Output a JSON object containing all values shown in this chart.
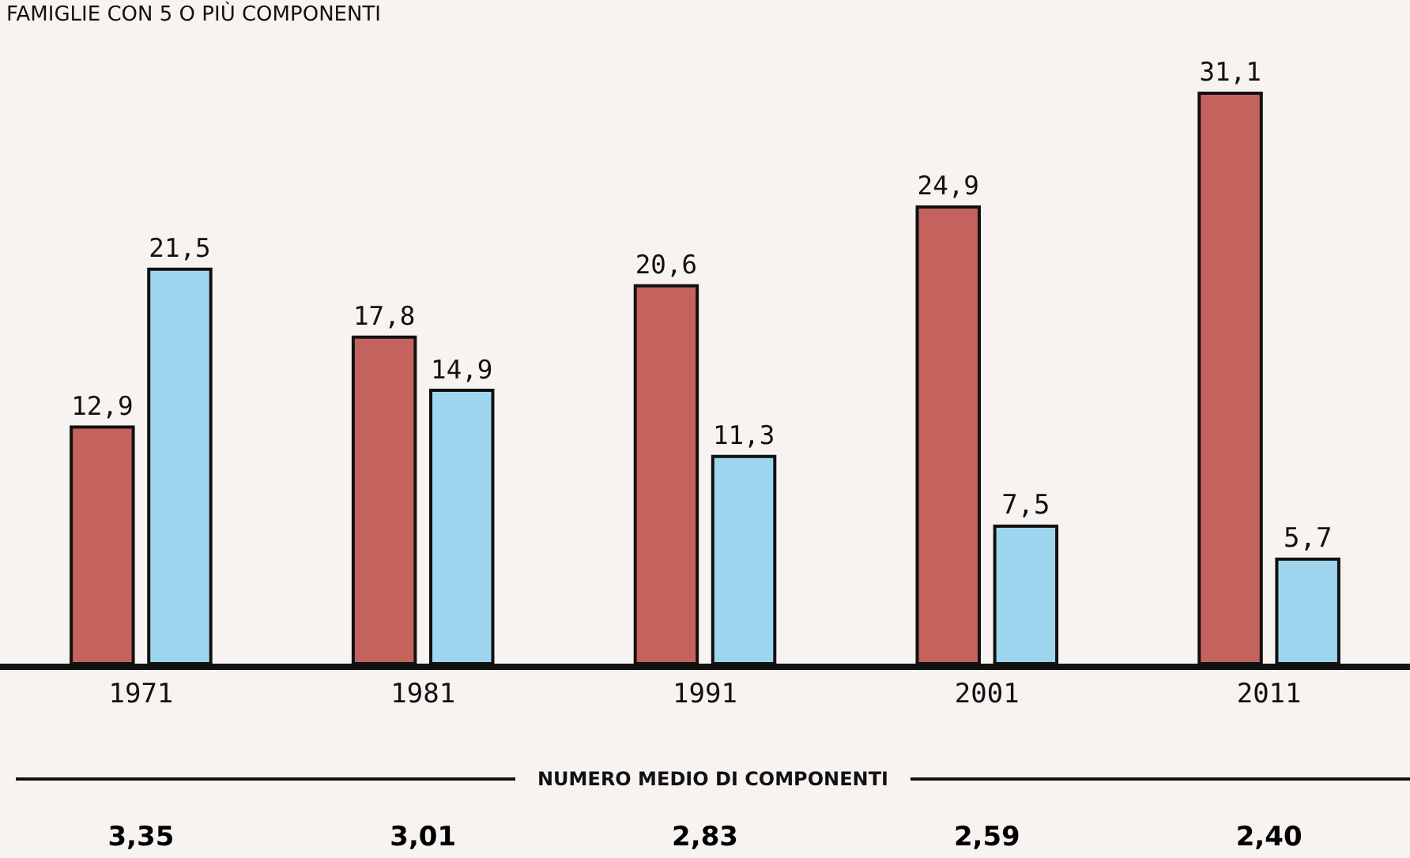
{
  "chart_data": {
    "type": "bar",
    "categories": [
      "1971",
      "1981",
      "1991",
      "2001",
      "2011"
    ],
    "series": [
      {
        "color": "#c4625e",
        "values": [
          12.9,
          17.8,
          20.6,
          24.9,
          31.1
        ],
        "value_labels": [
          "12,9",
          "17,8",
          "20,6",
          "24,9",
          "31,1"
        ]
      },
      {
        "color": "#9ed6f0",
        "values": [
          21.5,
          14.9,
          11.3,
          7.5,
          5.7
        ],
        "value_labels": [
          "21,5",
          "14,9",
          "11,3",
          "7,5",
          "5,7"
        ]
      }
    ],
    "annotations": [
      "FAMIGLIE CON 5 O PIÙ COMPONENTI",
      "NUMERO MEDIO DI COMPONENTI",
      "3,35",
      "3,01",
      "2,83",
      "2,59",
      "2,40"
    ],
    "grid": false
  }
}
